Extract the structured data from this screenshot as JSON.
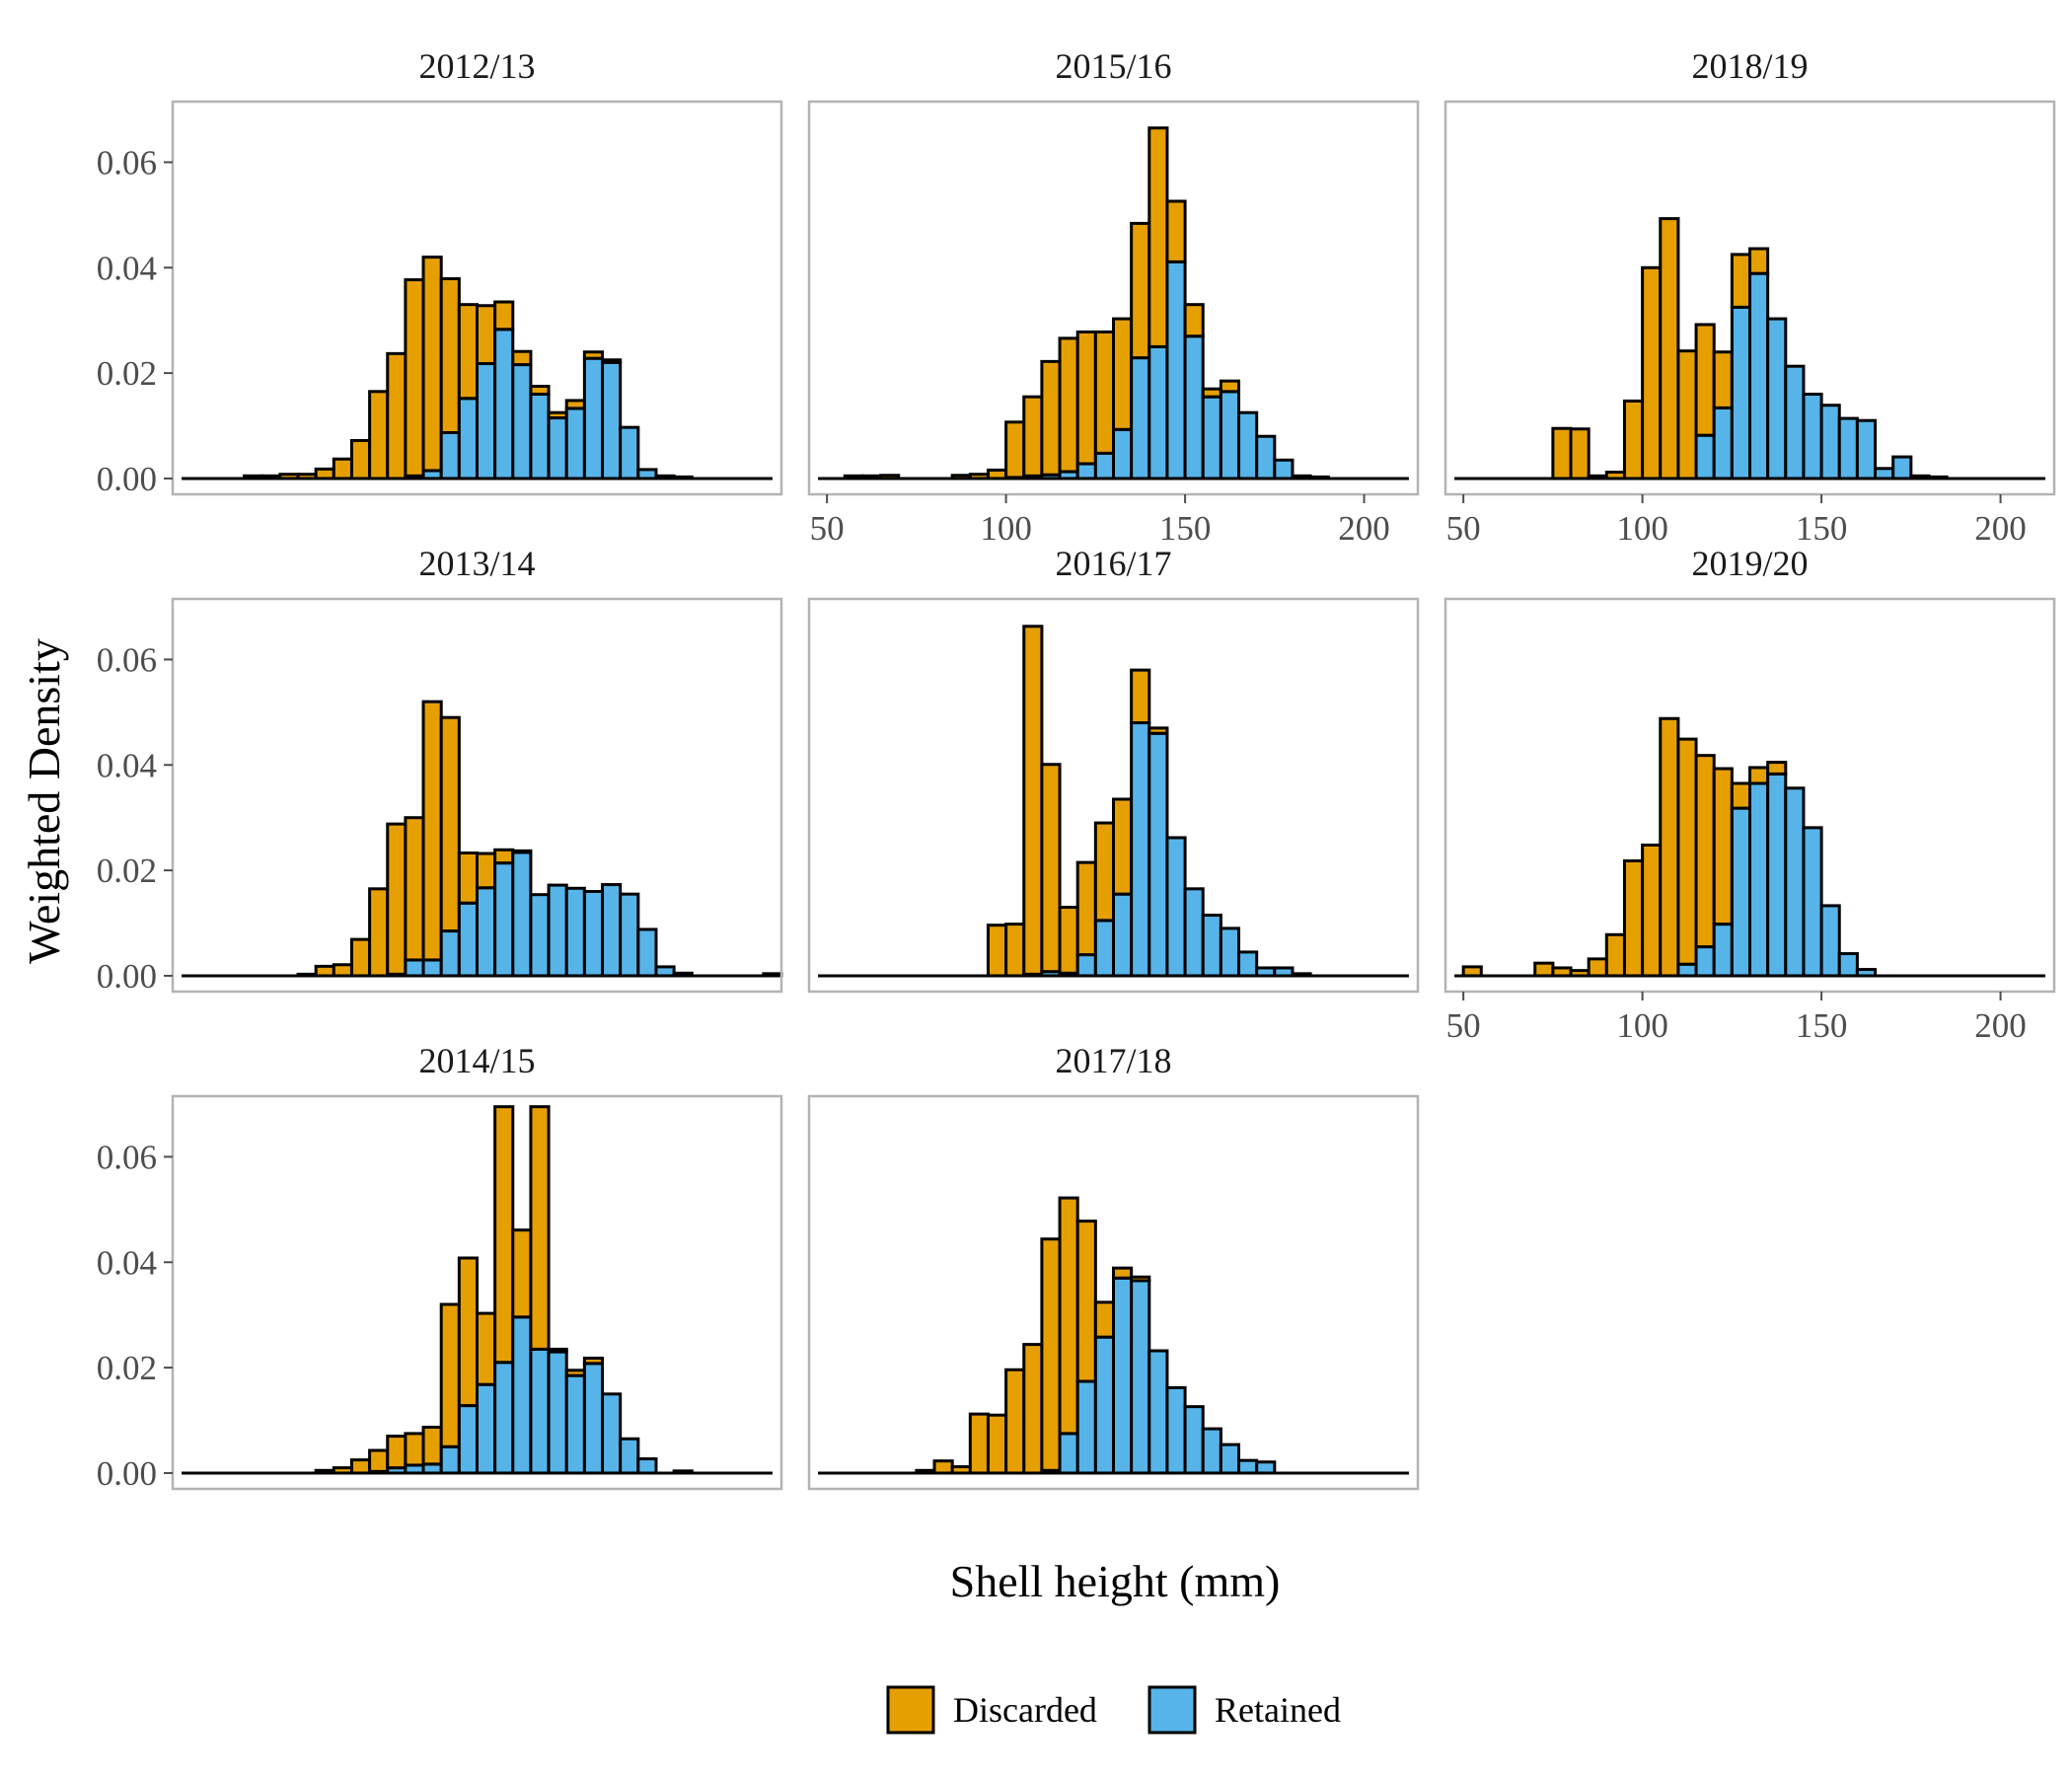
{
  "chart_data": {
    "type": "bar",
    "subtype": "stacked-histogram-facets",
    "xlabel": "Shell height (mm)",
    "ylabel": "Weighted Density",
    "xlim": [
      45,
      215
    ],
    "ylim": [
      -0.003,
      0.0715
    ],
    "x_ticks": [
      50,
      100,
      150,
      200
    ],
    "y_ticks": [
      0.0,
      0.02,
      0.04,
      0.06
    ],
    "y_tick_labels": [
      "0.00",
      "0.02",
      "0.04",
      "0.06"
    ],
    "bin_width": 5,
    "grid": false,
    "legend_position": "bottom",
    "colors": {
      "Discarded": "#E69F00",
      "Retained": "#56B4E9",
      "outline": "#000000",
      "panel_border": "#b3b3b3"
    },
    "series_names": [
      "Discarded",
      "Retained"
    ],
    "panels": [
      {
        "title": "2012/13",
        "bins": [
          [
            65,
            0.0005,
            0
          ],
          [
            70,
            0.0005,
            0
          ],
          [
            75,
            0.0008,
            0
          ],
          [
            80,
            0.0008,
            0
          ],
          [
            85,
            0.0018,
            0
          ],
          [
            90,
            0.0037,
            0
          ],
          [
            95,
            0.0072,
            0
          ],
          [
            100,
            0.0165,
            0
          ],
          [
            105,
            0.0237,
            0
          ],
          [
            110,
            0.0372,
            0.0005
          ],
          [
            115,
            0.0405,
            0.0015
          ],
          [
            120,
            0.0292,
            0.0087
          ],
          [
            125,
            0.0178,
            0.0152
          ],
          [
            130,
            0.011,
            0.0218
          ],
          [
            135,
            0.0052,
            0.0283
          ],
          [
            140,
            0.0025,
            0.0216
          ],
          [
            145,
            0.0015,
            0.016
          ],
          [
            150,
            0.001,
            0.0115
          ],
          [
            155,
            0.0015,
            0.0133
          ],
          [
            160,
            0.0012,
            0.0228
          ],
          [
            165,
            0.0005,
            0.022
          ],
          [
            170,
            0,
            0.0097
          ],
          [
            175,
            0,
            0.0017
          ],
          [
            180,
            0,
            0.0005
          ],
          [
            185,
            0,
            0.0003
          ]
        ]
      },
      {
        "title": "2013/14",
        "bins": [
          [
            80,
            0.0003,
            0
          ],
          [
            85,
            0.0018,
            0
          ],
          [
            90,
            0.0021,
            0
          ],
          [
            95,
            0.0069,
            0
          ],
          [
            100,
            0.0165,
            0
          ],
          [
            105,
            0.0285,
            0.0003
          ],
          [
            110,
            0.027,
            0.003
          ],
          [
            115,
            0.049,
            0.003
          ],
          [
            120,
            0.0405,
            0.0085
          ],
          [
            125,
            0.0095,
            0.0138
          ],
          [
            130,
            0.0065,
            0.0167
          ],
          [
            135,
            0.0025,
            0.0214
          ],
          [
            140,
            0.0003,
            0.0234
          ],
          [
            145,
            0,
            0.0154
          ],
          [
            150,
            0,
            0.0172
          ],
          [
            155,
            0,
            0.0166
          ],
          [
            160,
            0,
            0.016
          ],
          [
            165,
            0,
            0.0173
          ],
          [
            170,
            0,
            0.0155
          ],
          [
            175,
            0,
            0.0088
          ],
          [
            180,
            0,
            0.0017
          ],
          [
            185,
            0,
            0.0005
          ],
          [
            210,
            0,
            0.0004
          ]
        ]
      },
      {
        "title": "2014/15",
        "bins": [
          [
            85,
            0.0005,
            0
          ],
          [
            90,
            0.001,
            0
          ],
          [
            95,
            0.0025,
            0
          ],
          [
            100,
            0.004,
            0.0003
          ],
          [
            105,
            0.006,
            0.001
          ],
          [
            110,
            0.006,
            0.0015
          ],
          [
            115,
            0.007,
            0.0017
          ],
          [
            120,
            0.027,
            0.005
          ],
          [
            125,
            0.028,
            0.0128
          ],
          [
            130,
            0.0135,
            0.0168
          ],
          [
            135,
            0.0485,
            0.021
          ],
          [
            140,
            0.0165,
            0.0296
          ],
          [
            145,
            0.046,
            0.0235
          ],
          [
            150,
            0.0005,
            0.023
          ],
          [
            155,
            0.001,
            0.0185
          ],
          [
            160,
            0.001,
            0.0208
          ],
          [
            165,
            0,
            0.015
          ],
          [
            170,
            0,
            0.0065
          ],
          [
            175,
            0,
            0.0027
          ],
          [
            185,
            0,
            0.0004
          ]
        ]
      },
      {
        "title": "2015/16",
        "bins": [
          [
            55,
            0.0005,
            0
          ],
          [
            60,
            0.0005,
            0
          ],
          [
            65,
            0.0006,
            0
          ],
          [
            85,
            0.0006,
            0
          ],
          [
            90,
            0.0008,
            0
          ],
          [
            95,
            0.0016,
            0
          ],
          [
            100,
            0.0105,
            0.0002
          ],
          [
            105,
            0.015,
            0.0005
          ],
          [
            110,
            0.0215,
            0.0007
          ],
          [
            115,
            0.0253,
            0.0013
          ],
          [
            120,
            0.025,
            0.0028
          ],
          [
            125,
            0.023,
            0.0048
          ],
          [
            130,
            0.021,
            0.0093
          ],
          [
            135,
            0.0255,
            0.0229
          ],
          [
            140,
            0.0415,
            0.025
          ],
          [
            145,
            0.0115,
            0.0411
          ],
          [
            150,
            0.006,
            0.027
          ],
          [
            155,
            0.0015,
            0.0155
          ],
          [
            160,
            0.002,
            0.0165
          ],
          [
            165,
            0,
            0.0125
          ],
          [
            170,
            0,
            0.008
          ],
          [
            175,
            0,
            0.0035
          ],
          [
            180,
            0,
            0.0005
          ],
          [
            185,
            0,
            0.0003
          ]
        ]
      },
      {
        "title": "2016/17",
        "bins": [
          [
            95,
            0.0096,
            0
          ],
          [
            100,
            0.0098,
            0
          ],
          [
            105,
            0.066,
            0.0003
          ],
          [
            110,
            0.0393,
            0.0008
          ],
          [
            115,
            0.0125,
            0.0005
          ],
          [
            120,
            0.0175,
            0.004
          ],
          [
            125,
            0.0185,
            0.0105
          ],
          [
            130,
            0.018,
            0.0155
          ],
          [
            135,
            0.01,
            0.048
          ],
          [
            140,
            0.001,
            0.046
          ],
          [
            145,
            0,
            0.0262
          ],
          [
            150,
            0,
            0.0165
          ],
          [
            155,
            0,
            0.0115
          ],
          [
            160,
            0,
            0.009
          ],
          [
            165,
            0,
            0.0045
          ],
          [
            170,
            0,
            0.0015
          ],
          [
            175,
            0,
            0.0015
          ],
          [
            180,
            0,
            0.0004
          ]
        ]
      },
      {
        "title": "2017/18",
        "bins": [
          [
            75,
            0.0005,
            0
          ],
          [
            80,
            0.0023,
            0
          ],
          [
            85,
            0.0012,
            0
          ],
          [
            90,
            0.0112,
            0
          ],
          [
            95,
            0.011,
            0
          ],
          [
            100,
            0.0196,
            0
          ],
          [
            105,
            0.0244,
            0
          ],
          [
            110,
            0.0439,
            0.0005
          ],
          [
            115,
            0.0447,
            0.0075
          ],
          [
            120,
            0.0304,
            0.0174
          ],
          [
            125,
            0.0066,
            0.0258
          ],
          [
            130,
            0.0019,
            0.037
          ],
          [
            135,
            0.0007,
            0.0365
          ],
          [
            140,
            0,
            0.0232
          ],
          [
            145,
            0,
            0.0162
          ],
          [
            150,
            0,
            0.0126
          ],
          [
            155,
            0,
            0.0084
          ],
          [
            160,
            0,
            0.0054
          ],
          [
            165,
            0,
            0.0024
          ],
          [
            170,
            0,
            0.0021
          ]
        ]
      },
      {
        "title": "2018/19",
        "bins": [
          [
            75,
            0.0095,
            0
          ],
          [
            80,
            0.0094,
            0
          ],
          [
            85,
            0.0005,
            0
          ],
          [
            90,
            0.0012,
            0
          ],
          [
            95,
            0.0147,
            0
          ],
          [
            100,
            0.04,
            0
          ],
          [
            105,
            0.0493,
            0
          ],
          [
            110,
            0.0242,
            0
          ],
          [
            115,
            0.021,
            0.0082
          ],
          [
            120,
            0.0106,
            0.0134
          ],
          [
            125,
            0.01,
            0.0325
          ],
          [
            130,
            0.0047,
            0.0389
          ],
          [
            135,
            0,
            0.0303
          ],
          [
            140,
            0,
            0.0213
          ],
          [
            145,
            0,
            0.016
          ],
          [
            150,
            0,
            0.0139
          ],
          [
            155,
            0,
            0.0114
          ],
          [
            160,
            0,
            0.011
          ],
          [
            165,
            0,
            0.0019
          ],
          [
            170,
            0,
            0.0041
          ],
          [
            175,
            0,
            0.0005
          ],
          [
            180,
            0,
            0.0003
          ]
        ]
      },
      {
        "title": "2019/20",
        "bins": [
          [
            50,
            0.0017,
            0
          ],
          [
            70,
            0.0024,
            0
          ],
          [
            75,
            0.0015,
            0
          ],
          [
            80,
            0.001,
            0
          ],
          [
            85,
            0.0032,
            0
          ],
          [
            90,
            0.0078,
            0
          ],
          [
            95,
            0.0218,
            0
          ],
          [
            100,
            0.0248,
            0
          ],
          [
            105,
            0.0488,
            0
          ],
          [
            110,
            0.0427,
            0.0022
          ],
          [
            115,
            0.0363,
            0.0055
          ],
          [
            120,
            0.0295,
            0.0098
          ],
          [
            125,
            0.0047,
            0.0318
          ],
          [
            130,
            0.003,
            0.0365
          ],
          [
            135,
            0.0022,
            0.0383
          ],
          [
            140,
            0,
            0.0356
          ],
          [
            145,
            0,
            0.0281
          ],
          [
            150,
            0,
            0.0133
          ],
          [
            155,
            0,
            0.0042
          ],
          [
            160,
            0,
            0.0012
          ]
        ]
      }
    ]
  }
}
